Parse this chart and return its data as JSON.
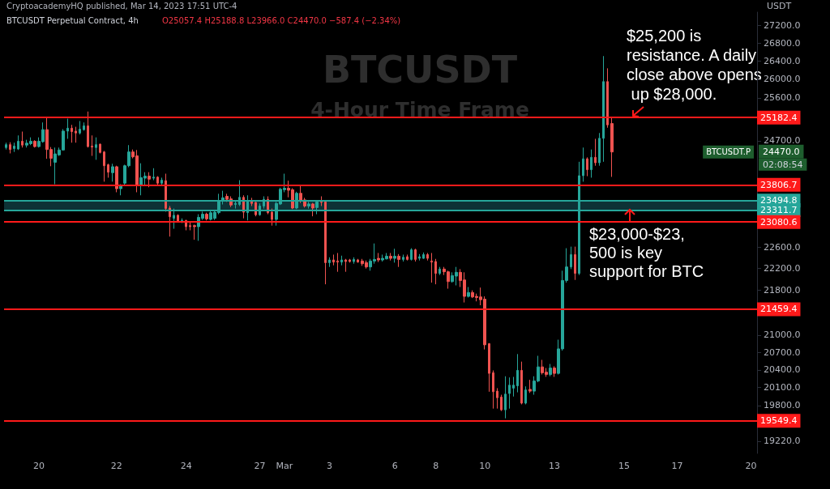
{
  "chart_data": {
    "type": "candlestick",
    "title": "BTCUSDT",
    "subtitle": "4-Hour Time Frame",
    "ylabel": "USDT",
    "log": "y",
    "grid": false,
    "ylim": [
      19025,
      27500
    ],
    "yticks": [
      {
        "value": 27200,
        "label": "27200.0"
      },
      {
        "value": 26800,
        "label": "26800.0"
      },
      {
        "value": 26400,
        "label": "26400.0"
      },
      {
        "value": 26000,
        "label": "26000.0"
      },
      {
        "value": 25600,
        "label": "25600.0"
      },
      {
        "value": 24700,
        "label": "24700.0"
      },
      {
        "value": 22600,
        "label": "22600.0"
      },
      {
        "value": 22200,
        "label": "22200.0"
      },
      {
        "value": 21800,
        "label": "21800.0"
      },
      {
        "value": 21000,
        "label": "21000.0"
      },
      {
        "value": 20700,
        "label": "20700.0"
      },
      {
        "value": 20400,
        "label": "20400.0"
      },
      {
        "value": 20100,
        "label": "20100.0"
      },
      {
        "value": 19800,
        "label": "19800.0"
      },
      {
        "value": 19220,
        "label": "19220.0"
      }
    ],
    "categories": [
      null,
      null,
      null,
      null,
      null,
      null,
      null,
      null,
      "20",
      null,
      null,
      null,
      null,
      null,
      null,
      null,
      null,
      null,
      null,
      null,
      null,
      null,
      null,
      null,
      null,
      null,
      null,
      "22",
      null,
      null,
      null,
      null,
      null,
      null,
      null,
      null,
      null,
      null,
      null,
      null,
      null,
      null,
      null,
      null,
      "24",
      null,
      null,
      null,
      null,
      null,
      null,
      null,
      null,
      null,
      null,
      null,
      null,
      null,
      null,
      null,
      null,
      null,
      "27",
      null,
      null,
      null,
      null,
      null,
      "Mar",
      null,
      null,
      null,
      null,
      null,
      null,
      null,
      null,
      null,
      null,
      "3",
      null,
      null,
      null,
      null,
      null,
      null,
      null,
      null,
      null,
      null,
      null,
      null,
      null,
      null,
      null,
      "6",
      null,
      null,
      null,
      null,
      null,
      null,
      null,
      null,
      null,
      "8",
      null,
      null,
      null,
      null,
      null,
      null,
      null,
      null,
      null,
      null,
      null,
      "10",
      null,
      null,
      null,
      null,
      null,
      null,
      null,
      null,
      null,
      null,
      null,
      null,
      null,
      null,
      null,
      null,
      "13",
      null,
      null,
      null,
      null,
      null,
      null,
      null,
      null,
      null,
      null,
      null,
      null,
      null,
      null,
      null,
      null,
      "15",
      null,
      null,
      null,
      null,
      null,
      null,
      null,
      null,
      null,
      null,
      null,
      null,
      "17",
      null,
      null,
      null,
      null,
      null,
      null,
      null,
      null,
      null,
      null,
      null,
      null,
      null,
      null,
      null,
      null,
      null,
      "20",
      null
    ],
    "ohlc": [
      [
        24560,
        24660,
        24520,
        24620
      ],
      [
        24620,
        24670,
        24440,
        24520
      ],
      [
        24540,
        24660,
        24470,
        24590
      ],
      [
        24530,
        24810,
        24510,
        24690
      ],
      [
        24690,
        24890,
        24560,
        24610
      ],
      [
        24610,
        24720,
        24560,
        24650
      ],
      [
        24640,
        24770,
        24610,
        24690
      ],
      [
        24690,
        24710,
        24560,
        24580
      ],
      [
        24580,
        24770,
        24560,
        24690
      ],
      [
        24680,
        25080,
        24660,
        24930
      ],
      [
        24930,
        25200,
        24330,
        24520
      ],
      [
        24520,
        24570,
        24180,
        24340
      ],
      [
        24260,
        24560,
        23820,
        24430
      ],
      [
        24410,
        24560,
        24390,
        24510
      ],
      [
        24510,
        24940,
        24500,
        24900
      ],
      [
        24900,
        25160,
        24740,
        24960
      ],
      [
        24960,
        25030,
        24660,
        24890
      ],
      [
        24900,
        24990,
        24660,
        24860
      ],
      [
        24860,
        25110,
        24830,
        24940
      ],
      [
        24930,
        25080,
        24910,
        25010
      ],
      [
        25010,
        25310,
        24560,
        24580
      ],
      [
        24590,
        24810,
        24390,
        24570
      ],
      [
        24560,
        24770,
        24310,
        24620
      ],
      [
        24630,
        24640,
        24440,
        24460
      ],
      [
        24470,
        24490,
        23870,
        24190
      ],
      [
        24210,
        24230,
        23950,
        24060
      ],
      [
        24050,
        24230,
        23870,
        24170
      ],
      [
        24170,
        24190,
        23660,
        23730
      ],
      [
        23730,
        23820,
        23600,
        23800
      ],
      [
        23840,
        24210,
        23790,
        24190
      ],
      [
        24190,
        24610,
        24160,
        24470
      ],
      [
        24470,
        24520,
        24340,
        24370
      ],
      [
        24390,
        24510,
        23660,
        23790
      ],
      [
        23790,
        24240,
        23600,
        23950
      ],
      [
        23940,
        24060,
        23790,
        23980
      ],
      [
        23980,
        24060,
        23760,
        23920
      ],
      [
        23940,
        24140,
        23900,
        23960
      ],
      [
        23960,
        23980,
        23790,
        23840
      ],
      [
        23840,
        23950,
        23790,
        23900
      ],
      [
        23890,
        24030,
        23280,
        23340
      ],
      [
        23350,
        23390,
        22800,
        23180
      ],
      [
        23150,
        23340,
        22950,
        23210
      ],
      [
        23210,
        23230,
        23080,
        23090
      ],
      [
        23090,
        23150,
        23060,
        23110
      ],
      [
        23110,
        23120,
        22920,
        22990
      ],
      [
        23010,
        23080,
        22920,
        22990
      ],
      [
        23010,
        23030,
        22740,
        22990
      ],
      [
        22990,
        23230,
        22720,
        23170
      ],
      [
        23150,
        23280,
        23120,
        23230
      ],
      [
        23230,
        23260,
        23110,
        23140
      ],
      [
        23130,
        23310,
        23110,
        23260
      ],
      [
        23150,
        23310,
        23120,
        23270
      ],
      [
        23260,
        23630,
        23230,
        23500
      ],
      [
        23500,
        23690,
        23420,
        23550
      ],
      [
        23580,
        23630,
        23470,
        23520
      ],
      [
        23530,
        23580,
        23370,
        23410
      ],
      [
        23420,
        23500,
        23340,
        23440
      ],
      [
        23420,
        23900,
        23390,
        23560
      ],
      [
        23560,
        23600,
        23150,
        23270
      ],
      [
        23260,
        23600,
        23110,
        23500
      ],
      [
        23500,
        23550,
        23390,
        23440
      ],
      [
        23460,
        23470,
        23190,
        23220
      ],
      [
        23220,
        23440,
        23200,
        23390
      ],
      [
        23390,
        23580,
        23340,
        23520
      ],
      [
        23520,
        23580,
        23230,
        23260
      ],
      [
        23270,
        23340,
        23010,
        23130
      ],
      [
        23130,
        23470,
        23010,
        23440
      ],
      [
        23430,
        23750,
        23410,
        23720
      ],
      [
        23710,
        24030,
        23660,
        23740
      ],
      [
        23740,
        23890,
        23560,
        23700
      ],
      [
        23710,
        23740,
        23330,
        23350
      ],
      [
        23350,
        23670,
        23330,
        23640
      ],
      [
        23640,
        23810,
        23450,
        23500
      ],
      [
        23510,
        23550,
        23360,
        23390
      ],
      [
        23390,
        23470,
        23340,
        23430
      ],
      [
        23430,
        23450,
        23190,
        23350
      ],
      [
        23360,
        23500,
        23230,
        23470
      ],
      [
        23470,
        23580,
        23390,
        23460
      ],
      [
        23470,
        23490,
        21910,
        22310
      ],
      [
        22310,
        22410,
        22230,
        22360
      ],
      [
        22360,
        22460,
        22260,
        22320
      ],
      [
        22340,
        22490,
        22140,
        22320
      ],
      [
        22320,
        22440,
        22260,
        22360
      ],
      [
        22360,
        22380,
        22140,
        22330
      ],
      [
        22360,
        22380,
        22310,
        22330
      ],
      [
        22330,
        22410,
        22290,
        22370
      ],
      [
        22360,
        22380,
        22310,
        22320
      ],
      [
        22340,
        22380,
        22250,
        22290
      ],
      [
        22310,
        22350,
        22200,
        22230
      ],
      [
        22230,
        22380,
        22160,
        22340
      ],
      [
        22340,
        22670,
        22290,
        22370
      ],
      [
        22390,
        22490,
        22320,
        22360
      ],
      [
        22360,
        22460,
        22330,
        22390
      ],
      [
        22380,
        22490,
        22370,
        22430
      ],
      [
        22430,
        22490,
        22350,
        22390
      ],
      [
        22390,
        22570,
        22310,
        22430
      ],
      [
        22430,
        22470,
        22230,
        22370
      ],
      [
        22370,
        22460,
        22330,
        22410
      ],
      [
        22420,
        22460,
        22350,
        22370
      ],
      [
        22370,
        22580,
        22350,
        22550
      ],
      [
        22550,
        22570,
        22330,
        22370
      ],
      [
        22390,
        22470,
        22350,
        22420
      ],
      [
        22390,
        22500,
        22380,
        22460
      ],
      [
        22460,
        22490,
        22350,
        22390
      ],
      [
        22340,
        22490,
        21940,
        22320
      ],
      [
        22330,
        22380,
        21910,
        22110
      ],
      [
        22110,
        22230,
        22080,
        22190
      ],
      [
        22190,
        22230,
        22080,
        22140
      ],
      [
        22140,
        22160,
        21830,
        21960
      ],
      [
        21960,
        22130,
        21940,
        22070
      ],
      [
        22060,
        22230,
        21890,
        22130
      ],
      [
        22130,
        22190,
        21860,
        21980
      ],
      [
        21990,
        22130,
        21580,
        21690
      ],
      [
        21690,
        21860,
        21670,
        21760
      ],
      [
        21760,
        21800,
        21660,
        21680
      ],
      [
        21690,
        21740,
        21600,
        21670
      ],
      [
        21680,
        21850,
        21530,
        21630
      ],
      [
        21640,
        21690,
        20750,
        20830
      ],
      [
        20850,
        20860,
        20030,
        20340
      ],
      [
        20350,
        20390,
        19750,
        20030
      ],
      [
        20040,
        20090,
        19750,
        19930
      ],
      [
        19940,
        19980,
        19710,
        19730
      ],
      [
        19730,
        20290,
        19590,
        19990
      ],
      [
        20000,
        20270,
        19750,
        20140
      ],
      [
        20090,
        20280,
        19950,
        20140
      ],
      [
        20130,
        20670,
        20020,
        20390
      ],
      [
        20390,
        20540,
        19820,
        19840
      ],
      [
        19840,
        20120,
        19820,
        20060
      ],
      [
        20070,
        20230,
        20010,
        20040
      ],
      [
        20040,
        20290,
        19980,
        20210
      ],
      [
        20210,
        20640,
        20190,
        20450
      ],
      [
        20450,
        20570,
        20320,
        20350
      ],
      [
        20360,
        20430,
        20280,
        20320
      ],
      [
        20320,
        20500,
        20290,
        20430
      ],
      [
        20430,
        20460,
        20280,
        20340
      ],
      [
        20340,
        20920,
        20320,
        20760
      ],
      [
        20760,
        22160,
        20730,
        21980
      ],
      [
        21980,
        22580,
        21940,
        22230
      ],
      [
        22230,
        22610,
        22190,
        22460
      ],
      [
        22460,
        22610,
        21990,
        22110
      ],
      [
        22110,
        24270,
        22080,
        23990
      ],
      [
        23990,
        24560,
        23870,
        24330
      ],
      [
        24330,
        24360,
        23980,
        24110
      ],
      [
        24110,
        24520,
        23950,
        24360
      ],
      [
        24360,
        24740,
        24190,
        24250
      ],
      [
        24250,
        24860,
        24190,
        24750
      ],
      [
        24750,
        26510,
        24270,
        25950
      ],
      [
        25950,
        26240,
        24970,
        25030
      ],
      [
        25057.4,
        25188.8,
        23966.0,
        24470.0
      ],
      null,
      null,
      null,
      null,
      null,
      null,
      null,
      null,
      null,
      null,
      null,
      null,
      null,
      null,
      null,
      null,
      null,
      null,
      null,
      null,
      null,
      null,
      null,
      null,
      null,
      null,
      null,
      null,
      null,
      null,
      null,
      null,
      null,
      null,
      null
    ],
    "ref_lines": [
      {
        "axis": "y",
        "value": 25182.4,
        "label": "25182.4",
        "color": "#ff1a1a"
      },
      {
        "axis": "y",
        "value": 23806.7,
        "label": "23806.7",
        "color": "#ff1a1a"
      },
      {
        "axis": "y",
        "value": 23494.8,
        "label": "23494.8",
        "color": "#26a69a"
      },
      {
        "axis": "y",
        "value": 23311.7,
        "label": "23311.7",
        "color": "#26a69a"
      },
      {
        "axis": "y",
        "value": 23080.6,
        "label": "23080.6",
        "color": "#ff1a1a"
      },
      {
        "axis": "y",
        "value": 21459.4,
        "label": "21459.4",
        "color": "#ff1a1a"
      },
      {
        "axis": "y",
        "value": 19549.4,
        "label": "19549.4",
        "color": "#ff1a1a"
      }
    ],
    "bands": [
      {
        "axis": "y",
        "from": 23311.7,
        "to": 23494.8,
        "color": "#1d6f78"
      }
    ],
    "annotations": [
      "CryptoacademyHQ published, Mar 14, 2023 17:51 UTC-4",
      "BTCUSDT Perpetual Contract, 4h",
      "O25057.4 H25188.8 L23966.0 C24470.0 −587.4 (−2.34%)",
      "$25,200 is resistance. A daily close above opens up $28,000.",
      "$23,000-$23,500 is key support for BTC",
      "BTCUSDT.P",
      "24470.0",
      "02:08:54"
    ]
  }
}
